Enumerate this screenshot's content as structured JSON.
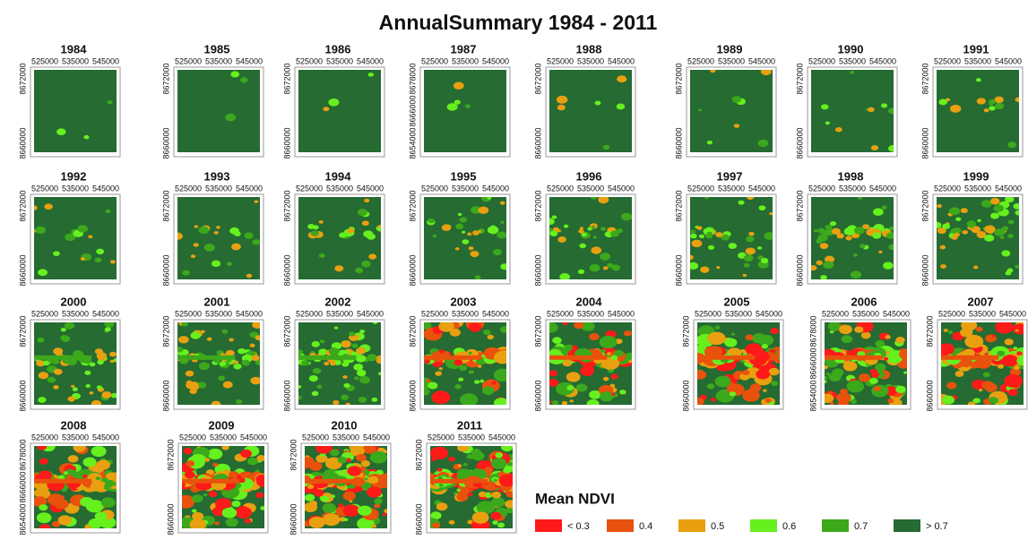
{
  "title": "AnnualSummary 1984 - 2011",
  "panels": [
    {
      "year": "1984",
      "xticks": [
        "525000",
        "535000",
        "545000"
      ],
      "yticks": [
        "8660000",
        "8672000"
      ]
    },
    {
      "year": "1985",
      "xticks": [
        "525000",
        "535000",
        "545000"
      ],
      "yticks": [
        "8660000",
        "8672000"
      ]
    },
    {
      "year": "1986",
      "xticks": [
        "525000",
        "535000",
        "545000"
      ],
      "yticks": [
        "8660000",
        "8672000"
      ]
    },
    {
      "year": "1987",
      "xticks": [
        "525000",
        "535000",
        "545000"
      ],
      "yticks": [
        "8654000",
        "8666000",
        "8678000"
      ]
    },
    {
      "year": "1988",
      "xticks": [
        "525000",
        "535000",
        "545000"
      ],
      "yticks": [
        "8660000",
        "8672000"
      ]
    },
    {
      "year": "1989",
      "xticks": [
        "525000",
        "535000",
        "545000"
      ],
      "yticks": [
        "8660000",
        "8672000"
      ]
    },
    {
      "year": "1990",
      "xticks": [
        "525000",
        "535000",
        "545000"
      ],
      "yticks": [
        "8660000",
        "8672000"
      ]
    },
    {
      "year": "1991",
      "xticks": [
        "525000",
        "535000",
        "545000"
      ],
      "yticks": [
        "8660000",
        "8672000"
      ]
    },
    {
      "year": "1992",
      "xticks": [
        "525000",
        "535000",
        "545000"
      ],
      "yticks": [
        "8660000",
        "8672000"
      ]
    },
    {
      "year": "1993",
      "xticks": [
        "525000",
        "535000",
        "545000"
      ],
      "yticks": [
        "8660000",
        "8672000"
      ]
    },
    {
      "year": "1994",
      "xticks": [
        "525000",
        "535000",
        "545000"
      ],
      "yticks": [
        "8660000",
        "8672000"
      ]
    },
    {
      "year": "1995",
      "xticks": [
        "525000",
        "535000",
        "545000"
      ],
      "yticks": [
        "8660000",
        "8672000"
      ]
    },
    {
      "year": "1996",
      "xticks": [
        "525000",
        "535000",
        "545000"
      ],
      "yticks": [
        "8660000",
        "8672000"
      ]
    },
    {
      "year": "1997",
      "xticks": [
        "525000",
        "535000",
        "545000"
      ],
      "yticks": [
        "8660000",
        "8672000"
      ]
    },
    {
      "year": "1998",
      "xticks": [
        "525000",
        "535000",
        "545000"
      ],
      "yticks": [
        "8660000",
        "8672000"
      ]
    },
    {
      "year": "1999",
      "xticks": [
        "525000",
        "535000",
        "545000"
      ],
      "yticks": [
        "8660000",
        "8672000"
      ]
    },
    {
      "year": "2000",
      "xticks": [
        "525000",
        "535000",
        "545000"
      ],
      "yticks": [
        "8660000",
        "8672000"
      ]
    },
    {
      "year": "2001",
      "xticks": [
        "525000",
        "535000",
        "545000"
      ],
      "yticks": [
        "8660000",
        "8672000"
      ]
    },
    {
      "year": "2002",
      "xticks": [
        "525000",
        "535000",
        "545000"
      ],
      "yticks": [
        "8660000",
        "8672000"
      ]
    },
    {
      "year": "2003",
      "xticks": [
        "525000",
        "535000",
        "545000"
      ],
      "yticks": [
        "8660000",
        "8672000"
      ]
    },
    {
      "year": "2004",
      "xticks": [
        "525000",
        "535000",
        "545000"
      ],
      "yticks": [
        "8660000",
        "8672000"
      ]
    },
    {
      "year": "2005",
      "xticks": [
        "525000",
        "535000",
        "545000"
      ],
      "yticks": [
        "8660000",
        "8672000"
      ]
    },
    {
      "year": "2006",
      "xticks": [
        "525000",
        "535000",
        "545000"
      ],
      "yticks": [
        "8654000",
        "8666000",
        "8678000"
      ]
    },
    {
      "year": "2007",
      "xticks": [
        "525000",
        "535000",
        "545000"
      ],
      "yticks": [
        "8660000",
        "8672000"
      ]
    },
    {
      "year": "2008",
      "xticks": [
        "525000",
        "535000",
        "545000"
      ],
      "yticks": [
        "8654000",
        "8666000",
        "8678000"
      ]
    },
    {
      "year": "2009",
      "xticks": [
        "525000",
        "535000",
        "545000"
      ],
      "yticks": [
        "8660000",
        "8672000"
      ]
    },
    {
      "year": "2010",
      "xticks": [
        "525000",
        "535000",
        "545000"
      ],
      "yticks": [
        "8660000",
        "8672000"
      ]
    },
    {
      "year": "2011",
      "xticks": [
        "525000",
        "535000",
        "545000"
      ],
      "yticks": [
        "8660000",
        "8672000"
      ]
    }
  ],
  "legend": {
    "title": "Mean NDVI",
    "items": [
      {
        "label": "< 0.3",
        "color": "#ff1a1a"
      },
      {
        "label": "0.4",
        "color": "#e8520c"
      },
      {
        "label": "0.5",
        "color": "#e8a010"
      },
      {
        "label": "0.6",
        "color": "#66f01e"
      },
      {
        "label": "0.7",
        "color": "#3ca81c"
      },
      {
        "label": "> 0.7",
        "color": "#256b32"
      }
    ]
  }
}
